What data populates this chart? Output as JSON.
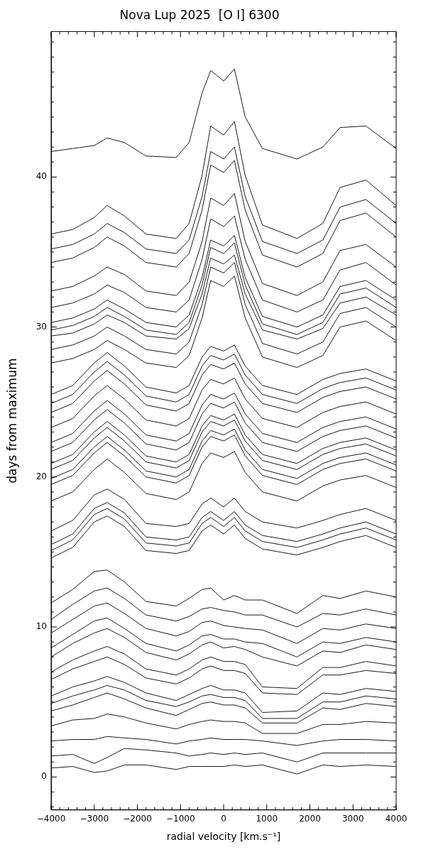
{
  "chart_data": {
    "type": "line",
    "title": "Nova Lup 2025  [O I] 6300",
    "xlabel": "radial velocity [km.s⁻¹]",
    "ylabel": "days from maximum",
    "marker": "none",
    "xlim": [
      -4000,
      4000
    ],
    "ylim": [
      -2.2,
      49.7
    ],
    "xticks": [
      {
        "value": -4000,
        "label": "−4000"
      },
      {
        "value": -3800,
        "label": null
      },
      {
        "value": -3600,
        "label": null
      },
      {
        "value": -3400,
        "label": null
      },
      {
        "value": -3200,
        "label": null
      },
      {
        "value": -3000,
        "label": "−3000"
      },
      {
        "value": -2800,
        "label": null
      },
      {
        "value": -2600,
        "label": null
      },
      {
        "value": -2400,
        "label": null
      },
      {
        "value": -2200,
        "label": null
      },
      {
        "value": -2000,
        "label": "−2000"
      },
      {
        "value": -1800,
        "label": null
      },
      {
        "value": -1600,
        "label": null
      },
      {
        "value": -1400,
        "label": null
      },
      {
        "value": -1200,
        "label": null
      },
      {
        "value": -1000,
        "label": "−1000"
      },
      {
        "value": -800,
        "label": null
      },
      {
        "value": -600,
        "label": null
      },
      {
        "value": -400,
        "label": null
      },
      {
        "value": -200,
        "label": null
      },
      0,
      {
        "value": 200,
        "label": null
      },
      {
        "value": 400,
        "label": null
      },
      {
        "value": 600,
        "label": null
      },
      {
        "value": 800,
        "label": null
      },
      1000,
      {
        "value": 1200,
        "label": null
      },
      {
        "value": 1400,
        "label": null
      },
      {
        "value": 1600,
        "label": null
      },
      {
        "value": 1800,
        "label": null
      },
      2000,
      {
        "value": 2200,
        "label": null
      },
      {
        "value": 2400,
        "label": null
      },
      {
        "value": 2600,
        "label": null
      },
      {
        "value": 2800,
        "label": null
      },
      3000,
      {
        "value": 3200,
        "label": null
      },
      {
        "value": 3400,
        "label": null
      },
      {
        "value": 3600,
        "label": null
      },
      {
        "value": 3800,
        "label": null
      },
      4000
    ],
    "yticks": [
      {
        "value": -2,
        "label": null
      },
      {
        "value": -1,
        "label": null
      },
      0,
      {
        "value": 1,
        "label": null
      },
      {
        "value": 2,
        "label": null
      },
      {
        "value": 3,
        "label": null
      },
      {
        "value": 4,
        "label": null
      },
      {
        "value": 5,
        "label": null
      },
      {
        "value": 6,
        "label": null
      },
      {
        "value": 7,
        "label": null
      },
      {
        "value": 8,
        "label": null
      },
      {
        "value": 9,
        "label": null
      },
      10,
      {
        "value": 11,
        "label": null
      },
      {
        "value": 12,
        "label": null
      },
      {
        "value": 13,
        "label": null
      },
      {
        "value": 14,
        "label": null
      },
      {
        "value": 15,
        "label": null
      },
      {
        "value": 16,
        "label": null
      },
      {
        "value": 17,
        "label": null
      },
      {
        "value": 18,
        "label": null
      },
      {
        "value": 19,
        "label": null
      },
      20,
      {
        "value": 21,
        "label": null
      },
      {
        "value": 22,
        "label": null
      },
      {
        "value": 23,
        "label": null
      },
      {
        "value": 24,
        "label": null
      },
      {
        "value": 25,
        "label": null
      },
      {
        "value": 26,
        "label": null
      },
      {
        "value": 27,
        "label": null
      },
      {
        "value": 28,
        "label": null
      },
      {
        "value": 29,
        "label": null
      },
      30,
      {
        "value": 31,
        "label": null
      },
      {
        "value": 32,
        "label": null
      },
      {
        "value": 33,
        "label": null
      },
      {
        "value": 34,
        "label": null
      },
      {
        "value": 35,
        "label": null
      },
      {
        "value": 36,
        "label": null
      },
      {
        "value": 37,
        "label": null
      },
      {
        "value": 38,
        "label": null
      },
      {
        "value": 39,
        "label": null
      },
      40,
      {
        "value": 41,
        "label": null
      },
      {
        "value": 42,
        "label": null
      },
      {
        "value": 43,
        "label": null
      },
      {
        "value": 44,
        "label": null
      },
      {
        "value": 45,
        "label": null
      },
      {
        "value": 46,
        "label": null
      },
      {
        "value": 47,
        "label": null
      },
      {
        "value": 48,
        "label": null
      },
      {
        "value": 49,
        "label": null
      }
    ],
    "x": [
      -4000,
      -3500,
      -3000,
      -2700,
      -2300,
      -1800,
      -1100,
      -800,
      -500,
      -300,
      0,
      250,
      500,
      900,
      1700,
      2300,
      2700,
      3300,
      4000
    ],
    "series": [
      {
        "color": "#000000",
        "values": [
          0.6,
          0.7,
          0.3,
          0.4,
          0.8,
          0.8,
          0.5,
          0.7,
          0.7,
          0.7,
          0.7,
          0.8,
          0.7,
          0.8,
          0.2,
          0.8,
          0.7,
          0.8,
          0.7
        ]
      },
      {
        "color": "#000000",
        "values": [
          1.4,
          1.5,
          0.9,
          1.3,
          1.9,
          1.8,
          1.6,
          1.4,
          1.5,
          1.6,
          1.5,
          1.6,
          1.5,
          1.6,
          1.0,
          1.6,
          1.6,
          1.6,
          1.6
        ]
      },
      {
        "color": "#000000",
        "values": [
          2.4,
          2.5,
          2.5,
          2.7,
          2.6,
          2.5,
          2.2,
          2.4,
          2.5,
          2.6,
          2.5,
          2.5,
          2.5,
          2.4,
          2.1,
          2.4,
          2.5,
          2.5,
          2.4
        ]
      },
      {
        "color": "#000000",
        "values": [
          3.4,
          3.8,
          3.9,
          4.2,
          4.0,
          3.6,
          3.2,
          3.5,
          3.7,
          3.8,
          3.7,
          3.7,
          3.6,
          2.9,
          2.9,
          3.5,
          3.5,
          3.7,
          3.6
        ]
      },
      {
        "color": "#000000",
        "values": [
          4.4,
          4.8,
          5.3,
          5.6,
          5.2,
          4.6,
          4.1,
          4.5,
          4.9,
          5.0,
          4.8,
          4.8,
          4.6,
          3.6,
          3.6,
          4.6,
          4.5,
          4.9,
          4.7
        ]
      },
      {
        "color": "#000000",
        "values": [
          4.9,
          5.4,
          5.8,
          6.1,
          5.8,
          5.1,
          4.7,
          5.0,
          5.4,
          5.5,
          5.3,
          5.3,
          5.1,
          3.9,
          3.9,
          5.0,
          5.0,
          5.4,
          5.2
        ]
      },
      {
        "color": "#000000",
        "values": [
          5.4,
          6.0,
          6.4,
          6.7,
          6.3,
          5.6,
          5.1,
          5.5,
          5.9,
          6.1,
          5.8,
          5.8,
          5.6,
          4.3,
          4.4,
          5.6,
          5.5,
          5.9,
          5.7
        ]
      },
      {
        "color": "#000000",
        "values": [
          6.5,
          7.2,
          7.7,
          8.0,
          7.5,
          6.6,
          6.2,
          6.6,
          7.2,
          7.4,
          7.1,
          7.1,
          6.9,
          5.6,
          5.5,
          6.8,
          6.8,
          7.1,
          6.9
        ]
      },
      {
        "color": "#000000",
        "values": [
          7.0,
          7.8,
          8.4,
          8.7,
          8.2,
          7.2,
          6.8,
          7.2,
          7.8,
          8.0,
          7.7,
          7.7,
          7.5,
          6.0,
          5.9,
          7.3,
          7.3,
          7.7,
          7.4
        ]
      },
      {
        "color": "#000000",
        "values": [
          8.0,
          8.9,
          9.6,
          9.9,
          9.3,
          8.3,
          7.8,
          8.2,
          8.8,
          9.0,
          8.6,
          8.7,
          8.5,
          8.0,
          7.4,
          8.4,
          8.3,
          8.8,
          8.5
        ]
      },
      {
        "color": "#000000",
        "values": [
          8.6,
          9.5,
          10.4,
          10.6,
          9.9,
          8.9,
          8.4,
          8.8,
          9.4,
          9.5,
          9.2,
          9.2,
          9.0,
          8.9,
          8.0,
          9.0,
          8.9,
          9.3,
          9.0
        ]
      },
      {
        "color": "#000000",
        "values": [
          9.6,
          10.5,
          11.4,
          11.6,
          10.9,
          9.9,
          9.4,
          9.7,
          10.3,
          10.4,
          10.1,
          10.0,
          9.9,
          9.8,
          8.9,
          9.9,
          9.8,
          10.2,
          9.9
        ]
      },
      {
        "color": "#000000",
        "values": [
          10.5,
          11.5,
          12.4,
          12.6,
          11.9,
          10.8,
          10.4,
          10.7,
          11.2,
          11.3,
          11.1,
          11.0,
          10.8,
          10.8,
          10.0,
          10.9,
          10.8,
          11.2,
          10.8
        ]
      },
      {
        "color": "#000000",
        "values": [
          11.6,
          12.5,
          13.7,
          13.8,
          13.0,
          11.7,
          11.4,
          11.9,
          12.5,
          12.6,
          11.8,
          12.1,
          11.8,
          11.8,
          10.9,
          12.1,
          11.9,
          12.4,
          12.0
        ]
      },
      {
        "color": "#000000",
        "values": [
          14.6,
          15.3,
          17.0,
          17.4,
          16.7,
          15.1,
          14.9,
          15.1,
          16.4,
          16.8,
          16.2,
          16.8,
          15.9,
          15.2,
          14.8,
          15.3,
          15.7,
          16.1,
          15.3
        ]
      },
      {
        "color": "#000000",
        "values": [
          15.1,
          15.8,
          17.5,
          17.9,
          17.2,
          15.6,
          15.4,
          15.6,
          16.9,
          17.3,
          16.7,
          17.3,
          16.4,
          15.7,
          15.3,
          15.8,
          16.2,
          16.6,
          15.8
        ]
      },
      {
        "color": "#000000",
        "values": [
          15.5,
          16.2,
          17.9,
          18.3,
          17.6,
          16.0,
          15.8,
          16.0,
          17.3,
          17.7,
          17.1,
          17.7,
          16.8,
          16.1,
          15.7,
          16.2,
          16.6,
          17.0,
          16.2
        ]
      },
      {
        "color": "#000000",
        "values": [
          16.4,
          17.1,
          18.8,
          19.2,
          18.5,
          16.9,
          16.7,
          16.9,
          18.2,
          18.6,
          18.0,
          18.6,
          17.7,
          17.0,
          16.6,
          17.1,
          17.5,
          17.9,
          17.1
        ]
      },
      {
        "color": "#000000",
        "values": [
          18.4,
          19.0,
          20.5,
          21.2,
          20.3,
          18.9,
          18.5,
          19.0,
          20.9,
          21.6,
          21.3,
          21.7,
          20.3,
          19.0,
          18.4,
          19.4,
          19.8,
          20.1,
          19.3
        ]
      },
      {
        "color": "#000000",
        "values": [
          19.5,
          20.1,
          21.6,
          22.3,
          21.4,
          20.0,
          19.6,
          20.1,
          22.0,
          22.7,
          22.4,
          22.8,
          21.4,
          20.1,
          19.5,
          20.5,
          20.9,
          21.2,
          20.4
        ]
      },
      {
        "color": "#000000",
        "values": [
          19.9,
          20.5,
          22.0,
          22.7,
          21.8,
          20.4,
          20.0,
          20.5,
          22.4,
          23.1,
          22.8,
          23.2,
          21.8,
          20.5,
          19.9,
          20.9,
          21.3,
          21.6,
          20.8
        ]
      },
      {
        "color": "#000000",
        "values": [
          20.5,
          21.1,
          22.6,
          23.3,
          22.4,
          21.0,
          20.6,
          21.1,
          23.0,
          23.7,
          23.4,
          23.8,
          22.4,
          21.1,
          20.5,
          21.5,
          21.9,
          22.2,
          21.4
        ]
      },
      {
        "color": "#000000",
        "values": [
          20.9,
          21.5,
          23.0,
          23.7,
          22.8,
          21.4,
          21.0,
          21.5,
          23.4,
          24.1,
          23.8,
          24.2,
          22.8,
          21.5,
          20.9,
          21.9,
          22.3,
          22.6,
          21.8
        ]
      },
      {
        "color": "#000000",
        "values": [
          21.7,
          22.3,
          23.8,
          24.5,
          23.6,
          22.2,
          21.8,
          22.3,
          24.2,
          24.9,
          24.6,
          25.0,
          23.6,
          22.3,
          21.7,
          22.7,
          23.1,
          23.4,
          22.6
        ]
      },
      {
        "color": "#000000",
        "values": [
          22.3,
          22.9,
          24.4,
          25.1,
          24.2,
          22.8,
          22.4,
          22.9,
          24.8,
          25.5,
          25.2,
          25.6,
          24.2,
          22.9,
          22.3,
          23.3,
          23.7,
          24.0,
          23.2
        ]
      },
      {
        "color": "#000000",
        "values": [
          23.3,
          23.9,
          25.4,
          26.1,
          25.2,
          23.8,
          23.4,
          23.9,
          25.8,
          26.5,
          26.2,
          26.6,
          25.2,
          23.9,
          23.3,
          24.3,
          24.7,
          25.0,
          24.2
        ]
      },
      {
        "color": "#000000",
        "values": [
          24.3,
          24.9,
          26.4,
          27.1,
          26.2,
          24.8,
          24.4,
          24.9,
          26.8,
          27.5,
          27.2,
          27.6,
          26.2,
          24.9,
          24.3,
          25.3,
          25.7,
          26.0,
          25.2
        ]
      },
      {
        "color": "#000000",
        "values": [
          24.9,
          25.5,
          27.0,
          27.7,
          26.8,
          25.4,
          25.0,
          25.5,
          27.4,
          28.1,
          27.8,
          28.2,
          26.8,
          25.5,
          24.9,
          25.9,
          26.3,
          26.6,
          25.8
        ]
      },
      {
        "color": "#000000",
        "values": [
          25.5,
          26.1,
          27.6,
          28.3,
          27.4,
          26.0,
          25.6,
          26.1,
          28.0,
          28.7,
          28.4,
          28.8,
          27.4,
          26.1,
          25.5,
          26.5,
          26.9,
          27.2,
          26.4
        ]
      },
      {
        "color": "#000000",
        "values": [
          27.6,
          27.9,
          28.5,
          29.1,
          28.5,
          27.6,
          27.3,
          28.1,
          30.6,
          33.1,
          32.7,
          33.4,
          30.6,
          28.0,
          27.3,
          28.1,
          30.0,
          30.4,
          29.1
        ]
      },
      {
        "color": "#000000",
        "values": [
          28.5,
          28.8,
          29.4,
          30.0,
          29.4,
          28.5,
          28.2,
          29.0,
          31.5,
          34.0,
          33.6,
          34.3,
          31.5,
          28.9,
          28.2,
          29.0,
          30.9,
          31.3,
          30.0
        ]
      },
      {
        "color": "#000000",
        "values": [
          29.4,
          29.6,
          30.2,
          30.8,
          30.3,
          29.4,
          29.2,
          29.9,
          32.2,
          34.6,
          34.2,
          34.8,
          32.2,
          29.8,
          29.2,
          29.9,
          31.6,
          32.0,
          30.8
        ]
      },
      {
        "color": "#000000",
        "values": [
          29.8,
          30.1,
          30.7,
          31.3,
          30.7,
          29.8,
          29.5,
          30.3,
          32.8,
          35.3,
          34.9,
          35.6,
          32.8,
          30.2,
          29.5,
          30.3,
          32.2,
          32.6,
          31.3
        ]
      },
      {
        "color": "#000000",
        "values": [
          30.3,
          30.6,
          31.2,
          31.8,
          31.2,
          30.3,
          30.0,
          30.8,
          33.3,
          35.8,
          35.4,
          36.1,
          33.3,
          30.7,
          30.0,
          30.8,
          32.7,
          33.1,
          31.8
        ]
      },
      {
        "color": "#000000",
        "values": [
          31.3,
          31.6,
          32.2,
          32.8,
          32.3,
          31.3,
          31.0,
          31.8,
          34.5,
          37.2,
          36.7,
          37.4,
          34.5,
          31.8,
          31.0,
          31.8,
          33.8,
          34.3,
          32.8
        ]
      },
      {
        "color": "#000000",
        "values": [
          32.4,
          32.7,
          33.4,
          34.0,
          33.5,
          32.4,
          32.1,
          33.0,
          35.7,
          38.6,
          38.1,
          38.9,
          35.7,
          32.9,
          32.1,
          33.0,
          35.1,
          35.5,
          34.0
        ]
      },
      {
        "color": "#000000",
        "values": [
          34.3,
          34.6,
          35.3,
          36.0,
          35.4,
          34.3,
          34.0,
          34.9,
          37.8,
          40.8,
          40.3,
          41.1,
          37.8,
          34.8,
          34.0,
          34.9,
          37.1,
          37.6,
          36.0
        ]
      },
      {
        "color": "#000000",
        "values": [
          35.2,
          35.5,
          36.2,
          36.9,
          36.3,
          35.2,
          34.9,
          35.8,
          38.7,
          41.7,
          41.2,
          42.0,
          38.7,
          35.7,
          34.9,
          35.8,
          38.0,
          38.5,
          36.9
        ]
      },
      {
        "color": "#000000",
        "values": [
          36.2,
          36.5,
          37.3,
          38.1,
          37.4,
          36.2,
          35.9,
          36.9,
          40.1,
          43.4,
          42.8,
          43.7,
          40.1,
          36.8,
          35.9,
          36.9,
          39.3,
          39.8,
          38.1
        ]
      },
      {
        "color": "#000000",
        "values": [
          41.7,
          41.9,
          42.1,
          42.6,
          42.3,
          41.4,
          41.3,
          42.3,
          45.6,
          47.1,
          46.4,
          47.2,
          44.0,
          41.9,
          41.2,
          42.0,
          43.3,
          43.4,
          41.9
        ]
      }
    ]
  }
}
